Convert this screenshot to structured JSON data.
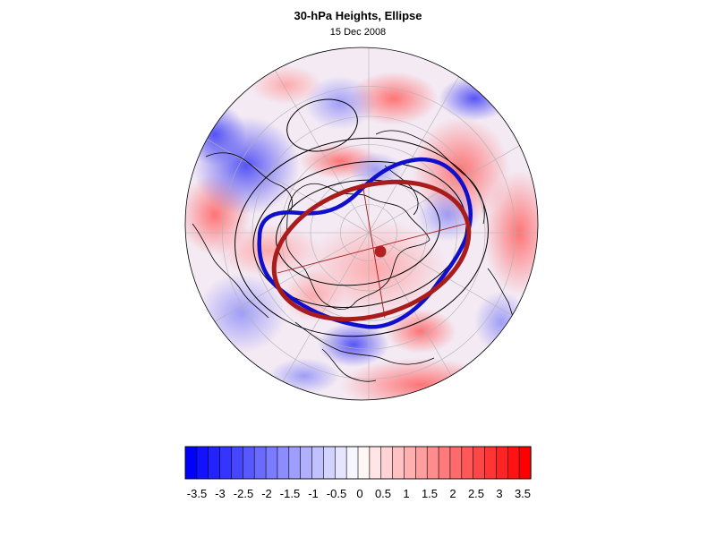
{
  "figure": {
    "title": "30-hPa Heights, Ellipse",
    "subtitle": "15 Dec 2008"
  },
  "map": {
    "projection": "polar stereographic (north pole)",
    "overlays": {
      "vortex_edge_color": "#1010cc",
      "ellipse_color": "#a81c1c",
      "ellipse_center_color": "#b32020",
      "height_contour_color": "#000000",
      "coastline_color": "#000000",
      "grid_color": "#b0b0b0"
    }
  },
  "colorbar": {
    "tick_labels": [
      "-3.5",
      "-3",
      "-2.5",
      "-2",
      "-1.5",
      "-1",
      "-0.5",
      "0",
      "0.5",
      "1",
      "1.5",
      "2",
      "2.5",
      "3",
      "3.5"
    ],
    "levels": [
      -3.5,
      -3.25,
      -3,
      -2.75,
      -2.5,
      -2.25,
      -2,
      -1.75,
      -1.5,
      -1.25,
      -1,
      -0.75,
      -0.5,
      -0.25,
      0,
      0.25,
      0.5,
      0.75,
      1,
      1.25,
      1.5,
      1.75,
      2,
      2.25,
      2.5,
      2.75,
      3,
      3.25,
      3.5
    ],
    "min_color": "#0000ff",
    "mid_color": "#ffffff",
    "max_color": "#ff0000"
  }
}
